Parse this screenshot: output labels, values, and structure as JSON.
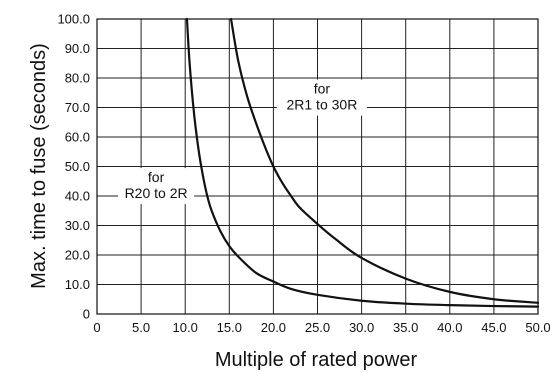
{
  "chart_data": {
    "type": "line",
    "xlabel": "Multiple of rated power",
    "ylabel": "Max. time to fuse (seconds)",
    "xlim": [
      0,
      50
    ],
    "ylim": [
      0,
      100
    ],
    "x_ticks": [
      "0",
      "5.0",
      "10.0",
      "15.0",
      "20.0",
      "25.0",
      "30.0",
      "35.0",
      "40.0",
      "45.0",
      "50.0"
    ],
    "y_ticks": [
      "0",
      "10.0",
      "20.0",
      "30.0",
      "40.0",
      "50.0",
      "60.0",
      "70.0",
      "80.0",
      "90.0",
      "100.0"
    ],
    "grid": true,
    "series": [
      {
        "name": "for R20 to 2R",
        "label_lines": [
          "for",
          "R20 to 2R"
        ],
        "x": [
          10.2,
          10.5,
          11,
          11.5,
          12,
          12.5,
          13,
          14,
          15,
          16,
          18,
          20,
          22,
          25,
          30,
          35,
          40,
          45,
          50
        ],
        "y": [
          100,
          85,
          68,
          56,
          47,
          40,
          35,
          28,
          23,
          19.5,
          14,
          11,
          8.5,
          6.5,
          4.5,
          3.5,
          3.0,
          2.7,
          2.5
        ]
      },
      {
        "name": "for 2R1 to 30R",
        "label_lines": [
          "for",
          "2R1 to 30R"
        ],
        "x": [
          15.2,
          16,
          17,
          18,
          19,
          20,
          21,
          22,
          23,
          25,
          27,
          30,
          35,
          40,
          45,
          50
        ],
        "y": [
          100,
          86,
          74,
          65,
          57,
          50,
          44.5,
          40,
          36,
          30.5,
          25.5,
          19,
          12,
          7.5,
          5,
          3.8
        ]
      }
    ]
  }
}
